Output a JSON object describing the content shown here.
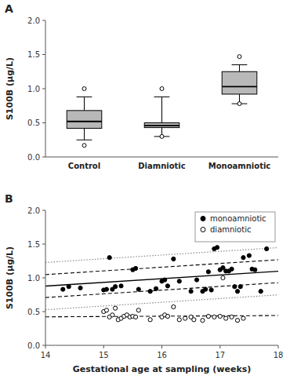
{
  "chart_data": [
    {
      "type": "box",
      "title": "A",
      "ylabel": "S100B (μg/L)",
      "categories": [
        "Control",
        "Diamniotic",
        "Monoamniotic"
      ],
      "q1": [
        0.42,
        0.43,
        0.92
      ],
      "median": [
        0.52,
        0.46,
        1.03
      ],
      "q3": [
        0.68,
        0.5,
        1.25
      ],
      "whisker_low": [
        0.25,
        0.3,
        0.78
      ],
      "whisker_high": [
        0.88,
        0.88,
        1.35
      ],
      "outliers": [
        [
          0.17,
          1.0
        ],
        [
          0.3,
          1.0
        ],
        [
          0.78,
          1.47
        ]
      ],
      "color": "#b8b8b8",
      "ylim": [
        0,
        2.0
      ],
      "yticks": [
        {
          "value": 0,
          "label": "0.0"
        },
        0.5,
        {
          "value": 1.0,
          "label": "1.0"
        },
        1.5,
        {
          "value": 2.0,
          "label": "2.0"
        }
      ],
      "grid": false
    },
    {
      "type": "scatter",
      "title": "B",
      "xlabel": "Gestational age at sampling (weeks)",
      "ylabel": "S100B (μg/L)",
      "xlim": [
        14,
        18
      ],
      "xticks": [
        14,
        15,
        16,
        17,
        18
      ],
      "ylim": [
        0,
        2.0
      ],
      "yticks": [
        {
          "value": 0,
          "label": "0.0"
        },
        0.5,
        {
          "value": 1.0,
          "label": "1.0"
        },
        1.5,
        {
          "value": 2.0,
          "label": "2.0"
        }
      ],
      "grid": false,
      "legend": "upper right",
      "series": [
        {
          "name": "monoamniotic",
          "type": "scatter",
          "marker": "circle",
          "color": "black",
          "x": [
            14.3,
            14.4,
            14.6,
            15.0,
            15.05,
            15.1,
            15.15,
            15.2,
            15.3,
            15.5,
            15.55,
            15.6,
            15.8,
            15.9,
            16.0,
            16.05,
            16.1,
            16.2,
            16.3,
            16.5,
            16.6,
            16.7,
            16.75,
            16.8,
            16.85,
            16.9,
            16.95,
            17.0,
            17.05,
            17.1,
            17.15,
            17.2,
            17.25,
            17.3,
            17.35,
            17.4,
            17.5,
            17.55,
            17.6,
            17.7,
            17.8
          ],
          "values": [
            0.83,
            0.87,
            0.85,
            0.82,
            0.83,
            1.3,
            0.83,
            0.87,
            0.88,
            1.12,
            1.14,
            0.83,
            0.8,
            0.84,
            0.95,
            0.97,
            0.88,
            1.28,
            0.95,
            0.8,
            0.97,
            0.8,
            0.83,
            1.09,
            0.82,
            1.43,
            1.45,
            1.12,
            1.15,
            1.1,
            1.1,
            1.13,
            0.87,
            0.8,
            0.87,
            1.3,
            1.33,
            1.13,
            1.12,
            0.8,
            1.43
          ]
        },
        {
          "name": "diamniotic",
          "type": "scatter",
          "marker": "circle-open",
          "color": "black",
          "x": [
            15.0,
            15.05,
            15.1,
            15.15,
            15.2,
            15.25,
            15.3,
            15.35,
            15.4,
            15.45,
            15.5,
            15.55,
            15.6,
            15.8,
            16.0,
            16.05,
            16.1,
            16.2,
            16.3,
            16.4,
            16.5,
            16.55,
            16.7,
            16.8,
            16.9,
            17.0,
            17.05,
            17.1,
            17.2,
            17.3,
            17.4
          ],
          "values": [
            0.5,
            0.52,
            0.42,
            0.45,
            0.55,
            0.38,
            0.4,
            0.43,
            0.45,
            0.42,
            0.43,
            0.42,
            0.52,
            0.38,
            0.42,
            0.45,
            0.43,
            0.57,
            0.38,
            0.4,
            0.42,
            0.38,
            0.37,
            0.43,
            0.42,
            0.43,
            1.0,
            0.4,
            0.42,
            0.37,
            0.4
          ]
        },
        {
          "type": "line",
          "line_style": "solid",
          "color": "black",
          "x": [
            14,
            18
          ],
          "values": [
            0.87791,
            1.09791
          ]
        },
        {
          "type": "line",
          "line_style": "dashed",
          "color": "black",
          "x": [
            14,
            18
          ],
          "values": [
            1.04791,
            1.26791
          ]
        },
        {
          "type": "line",
          "line_style": "dashed",
          "color": "black",
          "x": [
            14,
            18
          ],
          "values": [
            0.70791,
            0.92791
          ]
        },
        {
          "type": "line",
          "line_style": "dotted",
          "color": "gray",
          "x": [
            14,
            18
          ],
          "values": [
            1.22791,
            1.44791
          ]
        },
        {
          "type": "line",
          "line_style": "dotted",
          "color": "gray",
          "x": [
            14,
            18
          ],
          "values": [
            0.52791,
            0.74791
          ]
        },
        {
          "type": "line",
          "line_style": "dashed",
          "color": "black",
          "x": [
            14,
            18
          ],
          "values": [
            0.42164,
            0.44164
          ]
        }
      ]
    }
  ]
}
